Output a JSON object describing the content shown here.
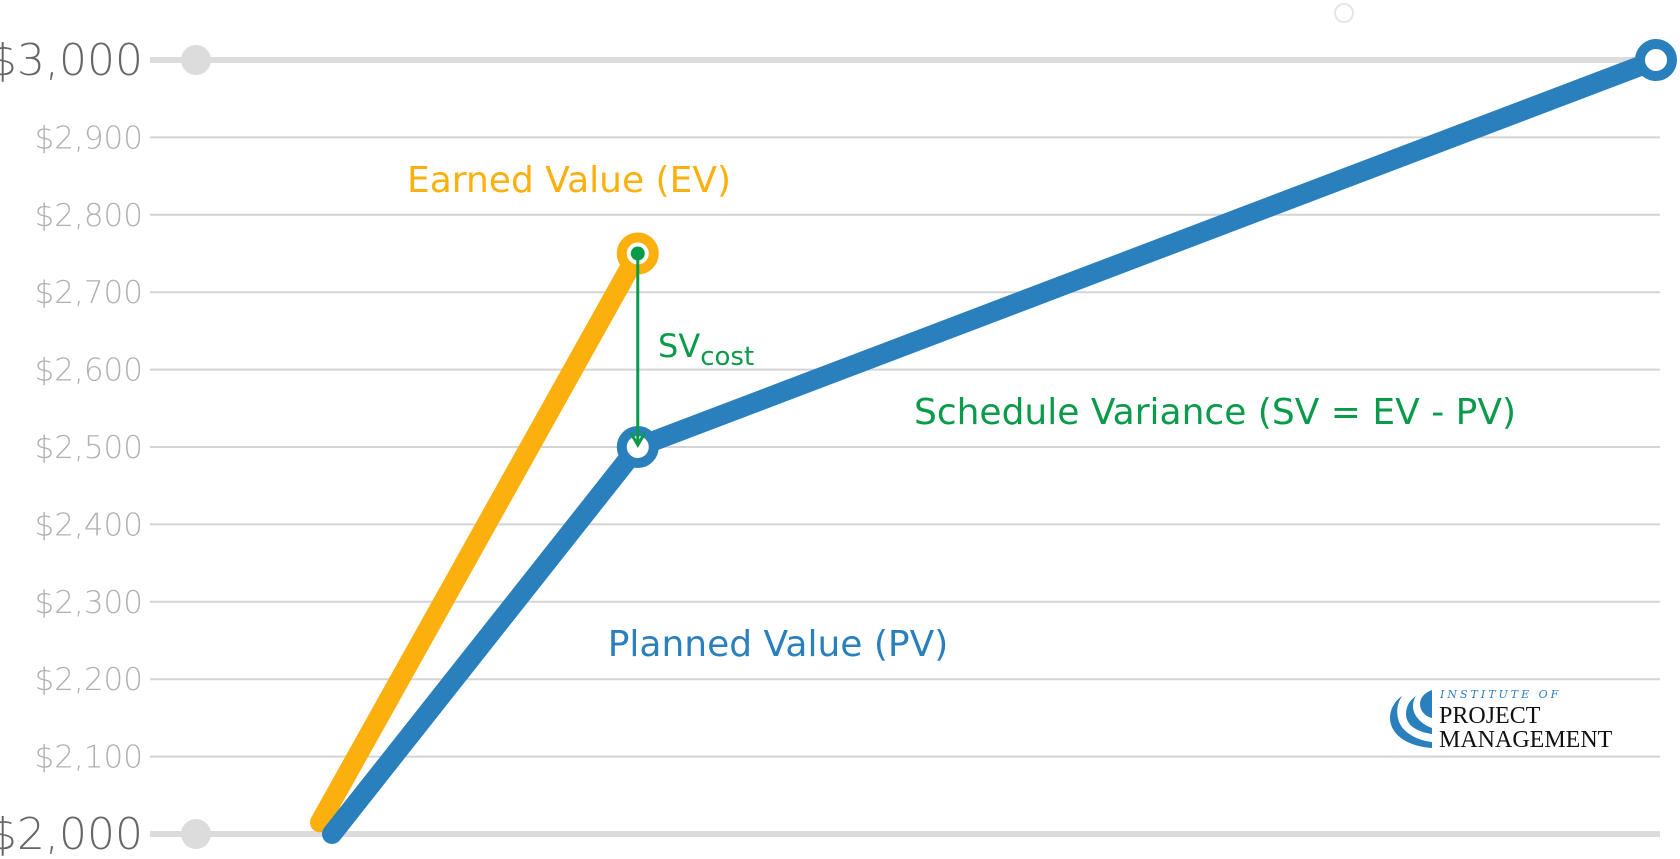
{
  "chart_data": {
    "type": "line",
    "title": "",
    "xlabel": "",
    "ylabel": "",
    "ylim": [
      2000,
      3000
    ],
    "yticks": [
      "$2,000",
      "$2,100",
      "$2,200",
      "$2,300",
      "$2,400",
      "$2,500",
      "$2,600",
      "$2,700",
      "$2,800",
      "$2,900",
      "$3,000"
    ],
    "ytick_values": [
      2000,
      2100,
      2200,
      2300,
      2400,
      2500,
      2600,
      2700,
      2800,
      2900,
      3000
    ],
    "grid": true,
    "series": [
      {
        "name": "Earned Value (EV)",
        "color": "#FBB00E",
        "x": [
          0,
          1
        ],
        "y": [
          2015,
          2750
        ]
      },
      {
        "name": "Planned Value (PV)",
        "color": "#2A80BD",
        "x": [
          0,
          1,
          4.33
        ],
        "y": [
          2000,
          2500,
          3000
        ]
      }
    ],
    "annotations": {
      "sv_arrow": {
        "label_main": "SV",
        "label_sub": "cost",
        "color": "#0A9B4A",
        "from": 2750,
        "to": 2500
      },
      "sv_formula": "Schedule Variance (SV = EV - PV)"
    }
  },
  "logo": {
    "line1": "INSTITUTE OF",
    "line2": "PROJECT",
    "line3": "MANAGEMENT",
    "color": "#2A80BD"
  }
}
